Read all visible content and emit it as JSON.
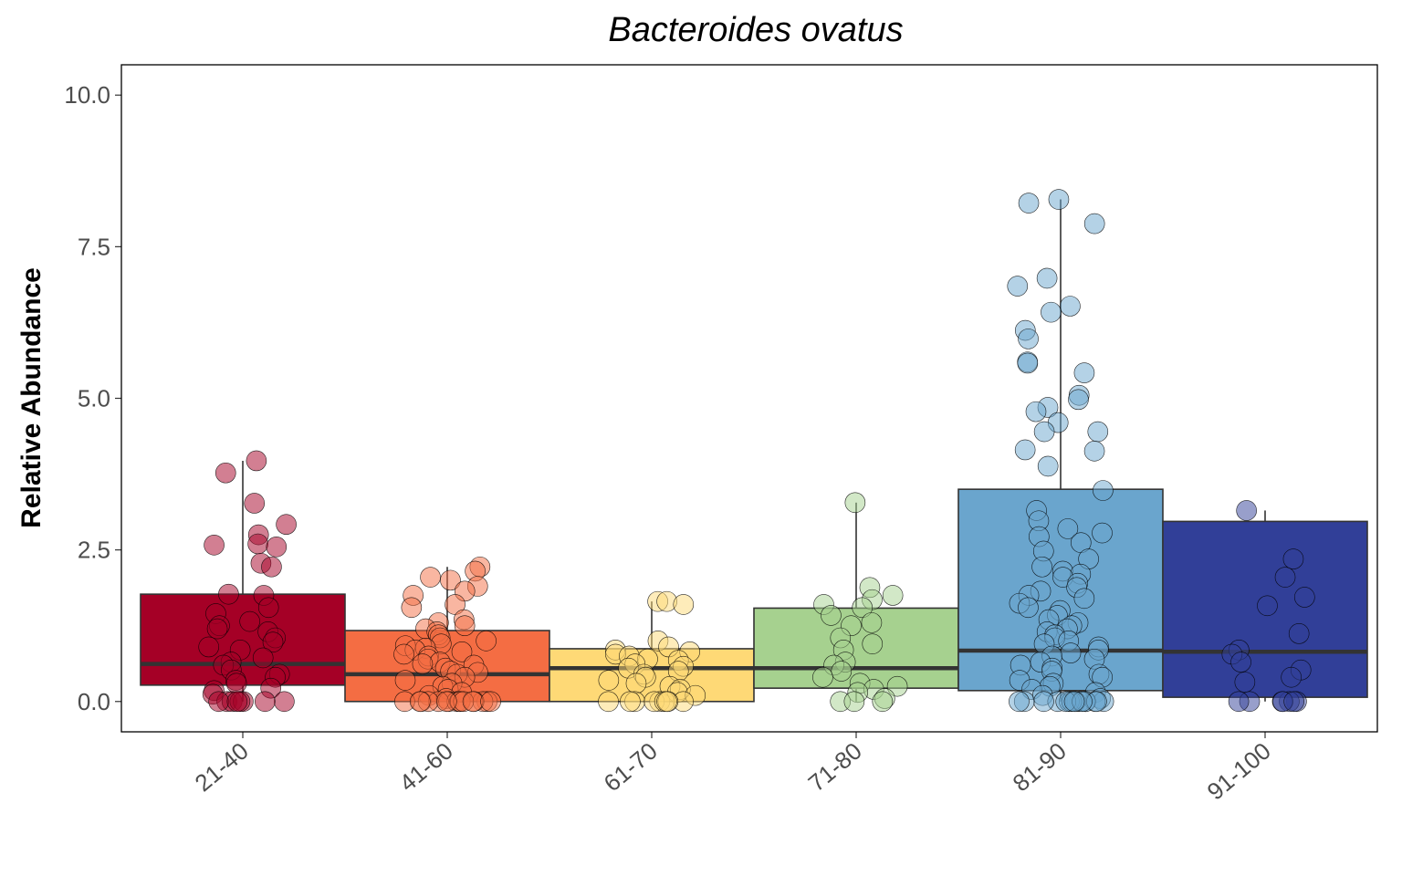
{
  "chart_data": {
    "type": "box",
    "title": "Bacteroides ovatus",
    "xlabel": "",
    "ylabel": "Relative Abundance",
    "ylim": [
      -0.5,
      10.5
    ],
    "yticks": [
      "0.0",
      "2.5",
      "5.0",
      "7.5",
      "10.0"
    ],
    "ytick_values": [
      0,
      2.5,
      5,
      7.5,
      10
    ],
    "grid": false,
    "legend": "none",
    "categories": [
      "21-40",
      "41-60",
      "61-70",
      "71-80",
      "81-90",
      "91-100"
    ],
    "colors": [
      "#a50026",
      "#f46d43",
      "#fed976",
      "#a6d18f",
      "#6aa5cd",
      "#313f98"
    ],
    "boxes": [
      {
        "q1": 0.27,
        "median": 0.62,
        "q3": 1.77,
        "whisker_low": 0.0,
        "whisker_high": 3.97
      },
      {
        "q1": 0.0,
        "median": 0.45,
        "q3": 1.17,
        "whisker_low": 0.0,
        "whisker_high": 2.22
      },
      {
        "q1": 0.0,
        "median": 0.55,
        "q3": 0.87,
        "whisker_low": 0.0,
        "whisker_high": 1.65
      },
      {
        "q1": 0.22,
        "median": 0.55,
        "q3": 1.54,
        "whisker_low": 0.0,
        "whisker_high": 3.28
      },
      {
        "q1": 0.18,
        "median": 0.84,
        "q3": 3.5,
        "whisker_low": 0.0,
        "whisker_high": 8.28
      },
      {
        "q1": 0.07,
        "median": 0.82,
        "q3": 2.97,
        "whisker_low": 0.0,
        "whisker_high": 3.15
      }
    ],
    "points": [
      [
        3.97,
        3.77,
        3.27,
        2.92,
        2.75,
        2.6,
        2.58,
        2.55,
        2.28,
        2.22,
        1.75,
        1.77,
        1.55,
        1.45,
        1.32,
        1.25,
        1.2,
        1.15,
        1.05,
        0.98,
        0.9,
        0.85,
        0.72,
        0.65,
        0.6,
        0.52,
        0.45,
        0.4,
        0.35,
        0.3,
        0.22,
        0.18,
        0.12,
        0.0,
        0.0,
        0.0,
        0.0,
        0.0,
        0.0,
        0.0,
        0.0
      ],
      [
        2.22,
        2.15,
        2.05,
        2.0,
        1.9,
        1.82,
        1.75,
        1.6,
        1.55,
        1.35,
        1.3,
        1.25,
        1.2,
        1.15,
        1.1,
        1.05,
        1.0,
        0.95,
        0.92,
        0.88,
        0.85,
        0.82,
        0.78,
        0.75,
        0.7,
        0.65,
        0.62,
        0.6,
        0.55,
        0.5,
        0.48,
        0.45,
        0.4,
        0.35,
        0.3,
        0.25,
        0.2,
        0.15,
        0.1,
        0.05,
        0.0,
        0.0,
        0.0,
        0.0,
        0.0,
        0.0,
        0.0,
        0.0,
        0.0,
        0.0,
        0.0,
        0.0,
        0.0,
        0.0,
        0.0,
        0.0
      ],
      [
        1.65,
        1.65,
        1.6,
        1.0,
        0.9,
        0.85,
        0.82,
        0.78,
        0.75,
        0.7,
        0.68,
        0.62,
        0.58,
        0.55,
        0.5,
        0.45,
        0.4,
        0.35,
        0.3,
        0.25,
        0.2,
        0.15,
        0.1,
        0.0,
        0.0,
        0.0,
        0.0,
        0.0,
        0.0,
        0.0,
        0.0,
        0.0
      ],
      [
        3.28,
        1.88,
        1.75,
        1.68,
        1.6,
        1.55,
        1.42,
        1.3,
        1.25,
        1.05,
        0.95,
        0.85,
        0.65,
        0.6,
        0.5,
        0.4,
        0.3,
        0.25,
        0.2,
        0.15,
        0.05,
        0.0,
        0.0,
        0.0
      ],
      [
        8.28,
        8.22,
        7.88,
        6.98,
        6.85,
        6.52,
        6.42,
        6.12,
        5.98,
        5.6,
        5.58,
        5.42,
        5.05,
        4.98,
        4.85,
        4.78,
        4.6,
        4.45,
        4.45,
        4.15,
        4.13,
        3.88,
        3.48,
        3.15,
        2.98,
        2.85,
        2.78,
        2.72,
        2.62,
        2.48,
        2.35,
        2.22,
        2.15,
        2.1,
        2.05,
        1.95,
        1.88,
        1.82,
        1.75,
        1.7,
        1.62,
        1.55,
        1.5,
        1.42,
        1.35,
        1.3,
        1.25,
        1.2,
        1.15,
        1.1,
        1.05,
        1.0,
        0.95,
        0.9,
        0.85,
        0.8,
        0.75,
        0.7,
        0.65,
        0.6,
        0.55,
        0.5,
        0.45,
        0.4,
        0.35,
        0.3,
        0.25,
        0.2,
        0.15,
        0.1,
        0.05,
        0.0,
        0.0,
        0.0,
        0.0,
        0.0,
        0.0,
        0.0,
        0.0,
        0.0,
        0.0,
        0.0,
        0.0,
        0.0,
        0.0,
        0.0,
        0.0
      ],
      [
        3.15,
        2.35,
        2.05,
        1.72,
        1.58,
        1.12,
        0.85,
        0.78,
        0.65,
        0.52,
        0.4,
        0.32,
        0.0,
        0.0,
        0.0,
        0.0,
        0.0,
        0.0,
        0.0
      ]
    ]
  }
}
